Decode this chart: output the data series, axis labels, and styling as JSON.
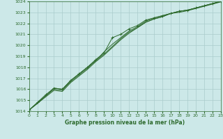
{
  "title": "Graphe pression niveau de la mer (hPa)",
  "background_color": "#cce8e8",
  "grid_color": "#aacccc",
  "line_color": "#2d6a2d",
  "xmin": 0,
  "xmax": 23,
  "ymin": 1014,
  "ymax": 1024,
  "yticks": [
    1014,
    1015,
    1016,
    1017,
    1018,
    1019,
    1020,
    1021,
    1022,
    1023,
    1024
  ],
  "xticks": [
    0,
    1,
    2,
    3,
    4,
    5,
    6,
    7,
    8,
    9,
    10,
    11,
    12,
    13,
    14,
    15,
    16,
    17,
    18,
    19,
    20,
    21,
    22,
    23
  ],
  "series_marked": [
    [
      1014.1,
      1014.8,
      1015.5,
      1016.1,
      1016.0,
      1016.8,
      1017.4,
      1018.0,
      1018.7,
      1019.3,
      1020.7,
      1021.0,
      1021.5,
      1021.8,
      1022.3,
      1022.5,
      1022.7,
      1022.9,
      1023.1,
      1023.2,
      1023.4,
      1023.6,
      1023.8,
      1024.0
    ]
  ],
  "series_plain": [
    [
      1014.1,
      1014.7,
      1015.3,
      1015.9,
      1015.8,
      1016.6,
      1017.2,
      1017.8,
      1018.5,
      1019.1,
      1019.8,
      1020.5,
      1021.1,
      1021.6,
      1022.1,
      1022.4,
      1022.6,
      1022.9,
      1023.1,
      1023.2,
      1023.4,
      1023.6,
      1023.8,
      1024.0
    ],
    [
      1014.1,
      1014.7,
      1015.4,
      1016.0,
      1015.9,
      1016.7,
      1017.3,
      1017.9,
      1018.6,
      1019.2,
      1019.9,
      1020.6,
      1021.2,
      1021.6,
      1022.1,
      1022.4,
      1022.6,
      1022.9,
      1023.0,
      1023.15,
      1023.35,
      1023.55,
      1023.75,
      1023.95
    ],
    [
      1014.1,
      1014.75,
      1015.4,
      1016.1,
      1016.0,
      1016.8,
      1017.4,
      1018.0,
      1018.6,
      1019.4,
      1020.1,
      1020.7,
      1021.3,
      1021.7,
      1022.2,
      1022.5,
      1022.7,
      1022.9,
      1023.1,
      1023.2,
      1023.4,
      1023.6,
      1023.8,
      1024.0
    ]
  ]
}
